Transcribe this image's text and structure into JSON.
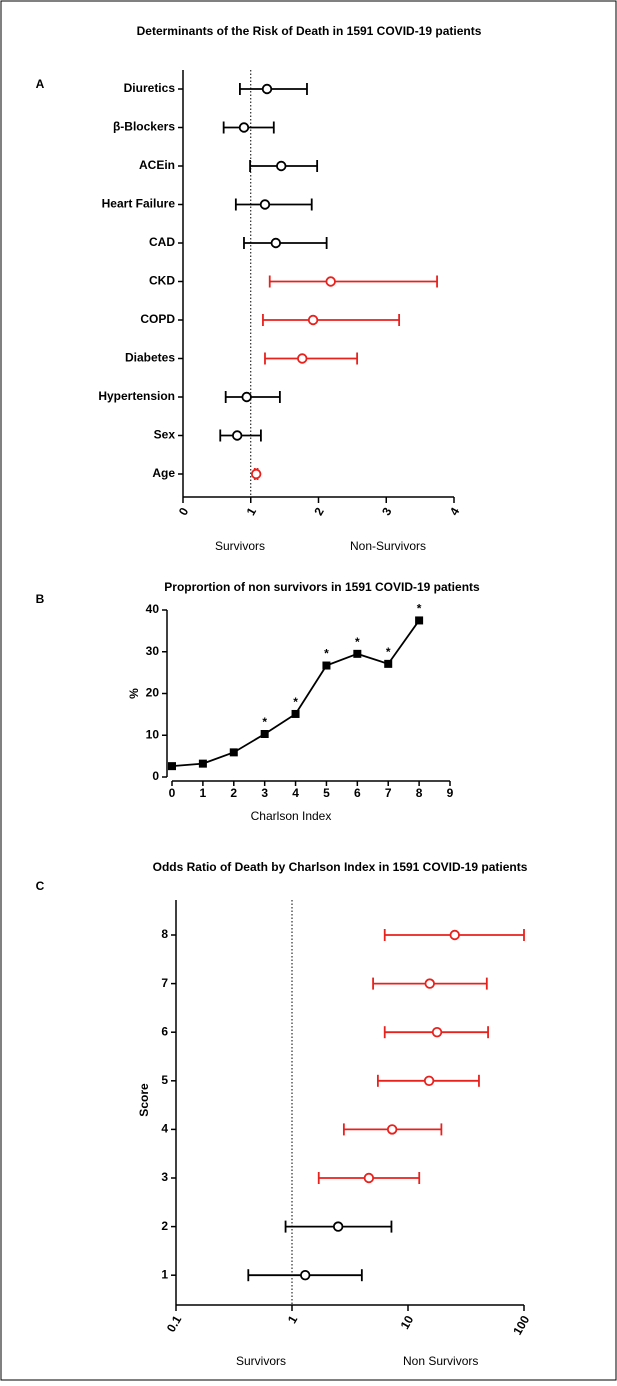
{
  "chart_data": [
    {
      "type": "forest",
      "panel": "A",
      "title": "Determinants of the Risk of  Death in 1591 COVID-19 patients",
      "categories": [
        "Diuretics",
        "β-Blockers",
        "ACEin",
        "Heart Failure",
        "CAD",
        "CKD",
        "COPD",
        "Diabetes",
        "Hypertension",
        "Sex",
        "Age"
      ],
      "values": [
        1.24,
        0.9,
        1.45,
        1.21,
        1.37,
        2.18,
        1.92,
        1.76,
        0.94,
        0.8,
        1.08
      ],
      "low": [
        0.84,
        0.6,
        0.99,
        0.78,
        0.9,
        1.28,
        1.18,
        1.21,
        0.63,
        0.55,
        1.06
      ],
      "high": [
        1.83,
        1.34,
        1.98,
        1.9,
        2.12,
        3.75,
        3.19,
        2.57,
        1.43,
        1.15,
        1.1
      ],
      "colors": [
        "#000000",
        "#000000",
        "#000000",
        "#000000",
        "#000000",
        "#e8211d",
        "#e8211d",
        "#e8211d",
        "#000000",
        "#000000",
        "#e8211d"
      ],
      "xlim": [
        0,
        4
      ],
      "xticks": [
        0,
        1,
        2,
        3,
        4
      ],
      "reference_line": 1,
      "annotations": [
        "Survivors",
        "Non-Survivors"
      ]
    },
    {
      "type": "line",
      "panel": "B",
      "title": "Proprortion of non survivors in 1591 COVID-19 patients",
      "x": [
        0,
        1,
        2,
        3,
        4,
        5,
        6,
        7,
        8
      ],
      "values": [
        2.6,
        3.2,
        5.9,
        10.3,
        15.1,
        26.7,
        29.5,
        27.1,
        37.5
      ],
      "color": "#000000",
      "xlim": [
        0,
        9
      ],
      "xticks": [
        0,
        1,
        2,
        3,
        4,
        5,
        6,
        7,
        8,
        9
      ],
      "ylim": [
        0,
        40
      ],
      "yticks": [
        0,
        10,
        20,
        30,
        40
      ],
      "xlabel": "Charlson Index",
      "ylabel": "%",
      "annotations": [
        {
          "x": 3,
          "text": "*"
        },
        {
          "x": 4,
          "text": "*"
        },
        {
          "x": 5,
          "text": "*"
        },
        {
          "x": 6,
          "text": "*"
        },
        {
          "x": 7,
          "text": "*"
        },
        {
          "x": 8,
          "text": "*"
        }
      ]
    },
    {
      "type": "forest",
      "panel": "C",
      "title": "Odds Ratio of Death by Charlson Index in 1591 COVID-19 patients",
      "categories": [
        "8",
        "7",
        "6",
        "5",
        "4",
        "3",
        "2",
        "1"
      ],
      "values": [
        25.3,
        15.4,
        17.8,
        15.2,
        7.3,
        4.6,
        2.5,
        1.3
      ],
      "low": [
        6.3,
        5.0,
        6.3,
        5.5,
        2.8,
        1.7,
        0.88,
        0.42
      ],
      "high": [
        100,
        47.8,
        49,
        40.9,
        19.4,
        12.5,
        7.2,
        4.0
      ],
      "colors": [
        "#e8211d",
        "#e8211d",
        "#e8211d",
        "#e8211d",
        "#e8211d",
        "#e8211d",
        "#000000",
        "#000000"
      ],
      "xlim": [
        0.1,
        100
      ],
      "xticks": [
        0.1,
        1,
        10,
        100
      ],
      "xscale": "log",
      "reference_line": 1,
      "ylabel": "Score",
      "annotations": [
        "Survivors",
        "Non Survivors"
      ]
    }
  ]
}
